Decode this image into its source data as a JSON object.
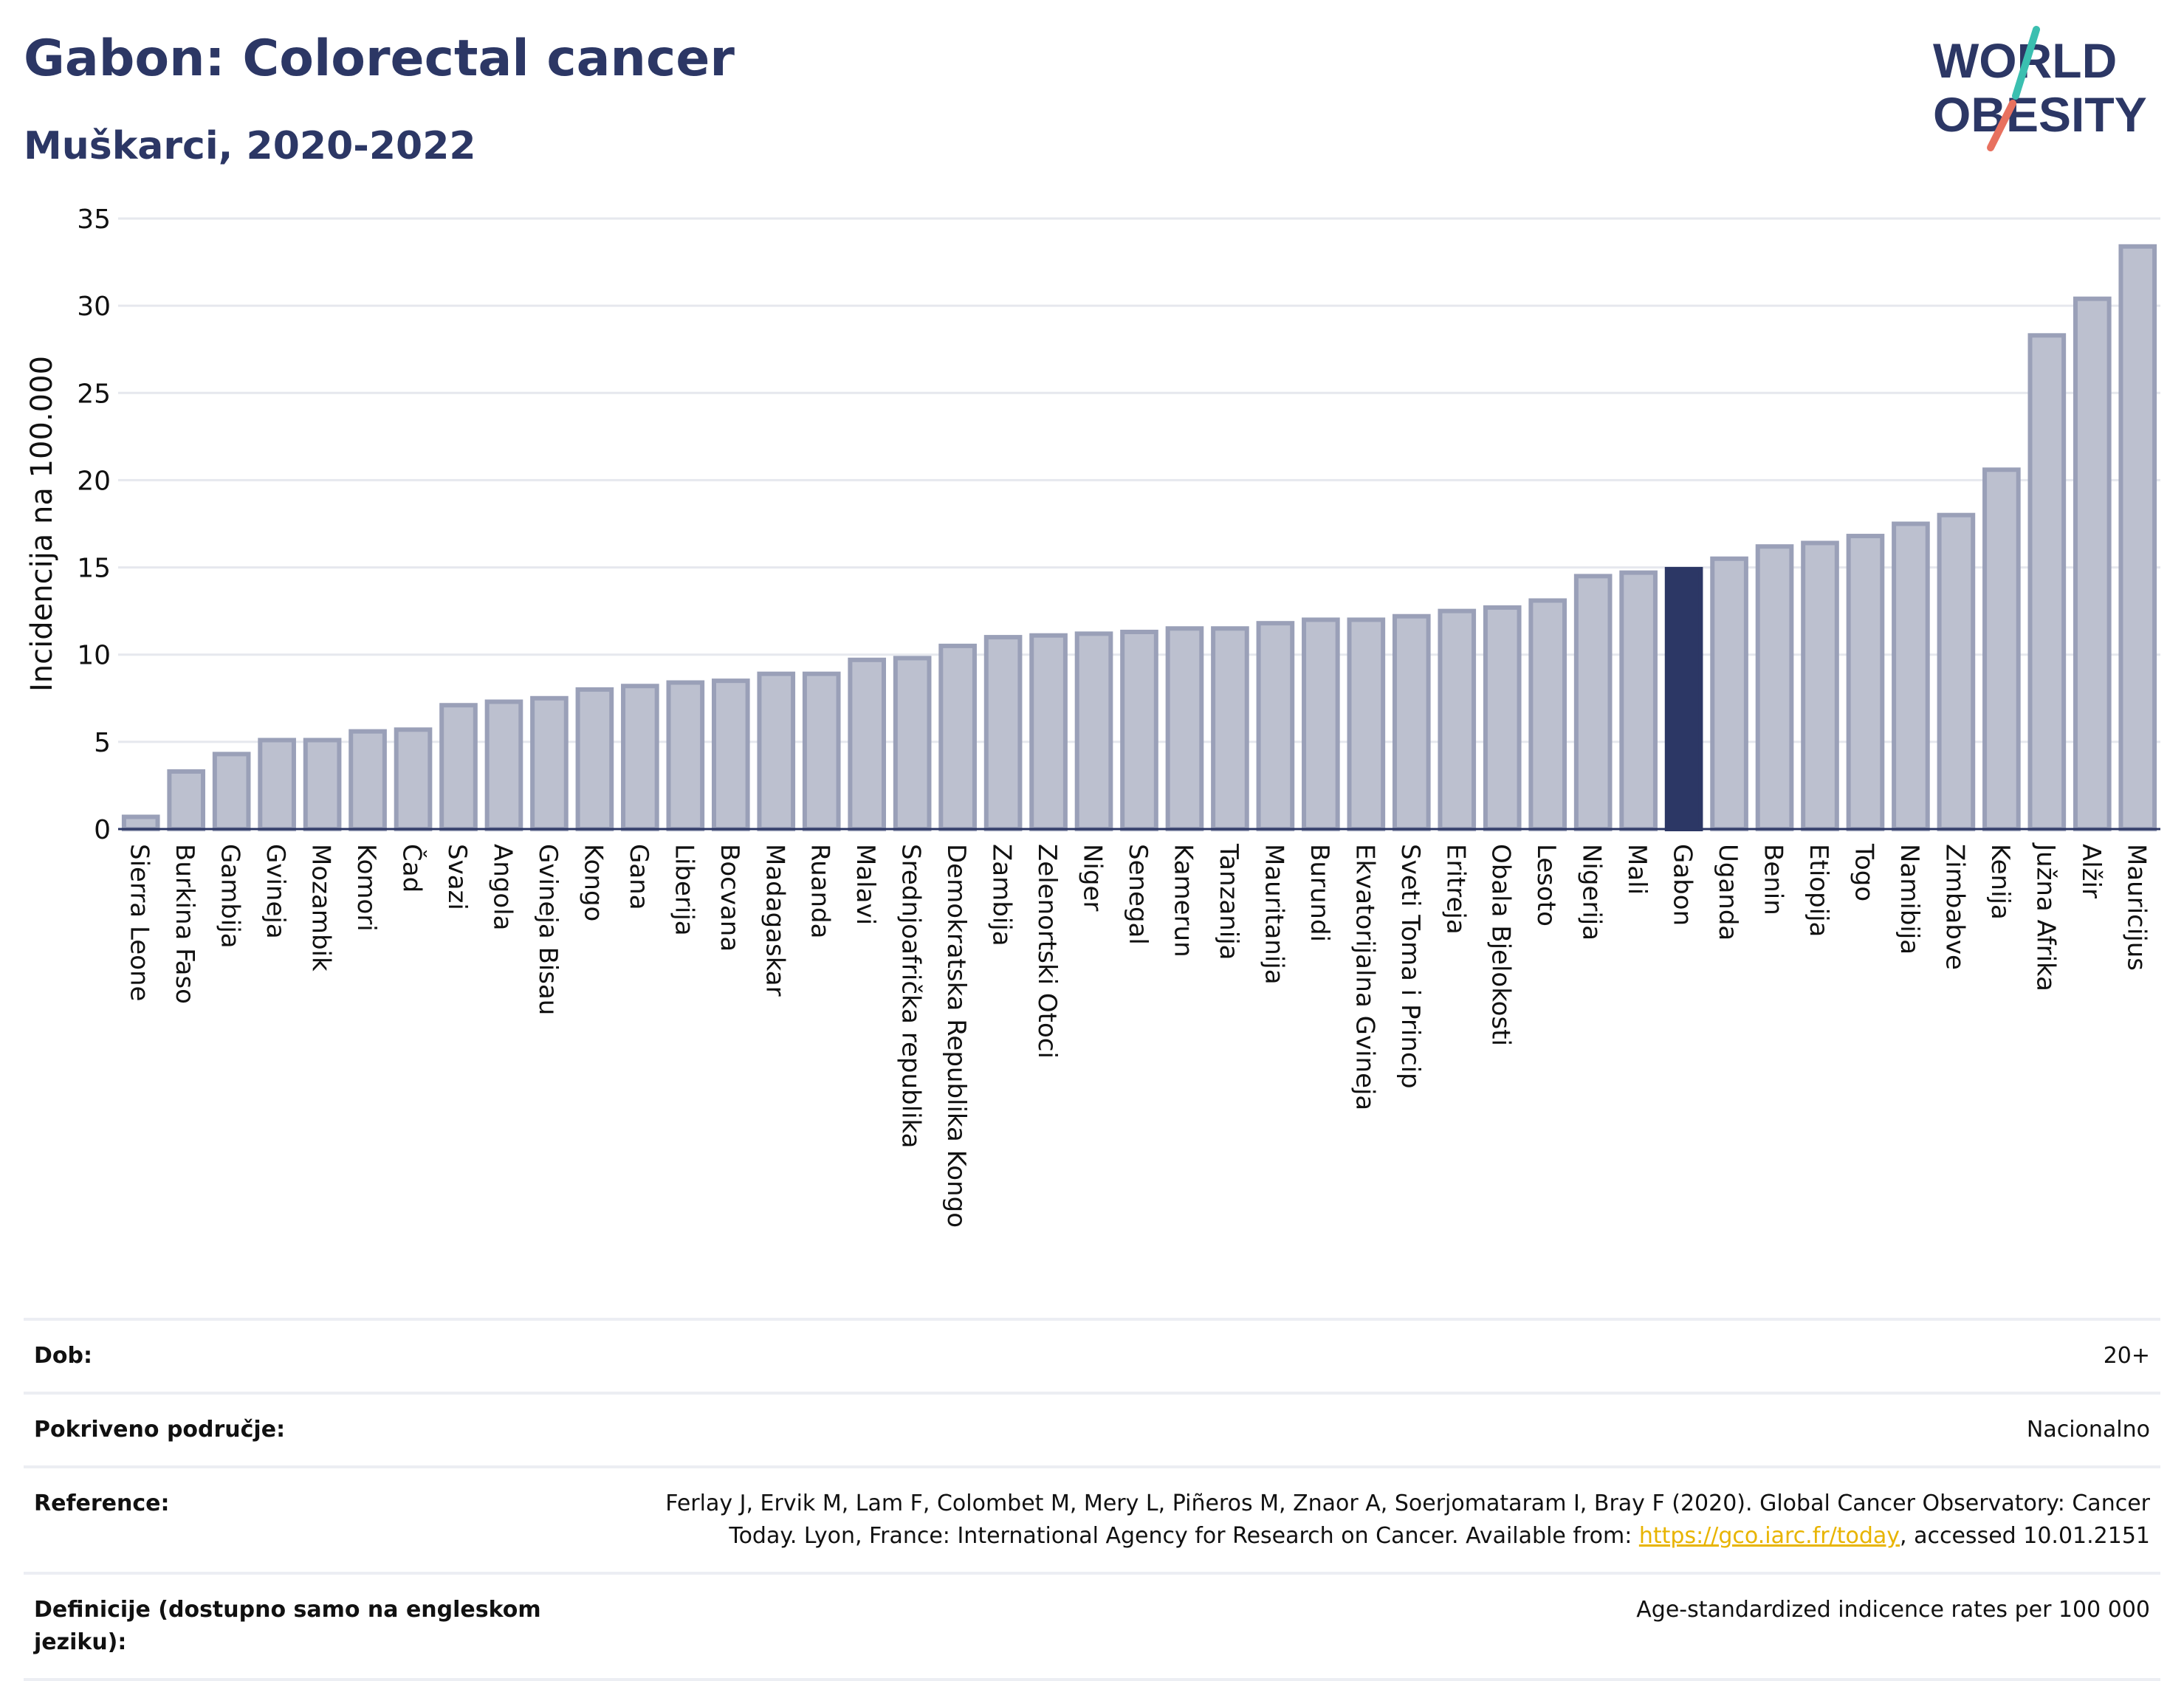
{
  "header": {
    "title": "Gabon: Colorectal cancer",
    "subtitle": "Muškarci, 2020-2022"
  },
  "logo": {
    "line1": "WORLD",
    "line2": "OBESITY"
  },
  "colors": {
    "highlight": "#2c3765",
    "bar": "#bcc0cf",
    "bar_stroke": "#9aa0b8",
    "title": "#2c3765"
  },
  "chart_data": {
    "type": "bar",
    "ylabel": "Incidencija na 100.000",
    "ylim": [
      0,
      35
    ],
    "yticks": [
      0,
      5,
      10,
      15,
      20,
      25,
      30,
      35
    ],
    "grid": true,
    "highlight": "Gabon",
    "categories": [
      "Sierra Leone",
      "Burkina Faso",
      "Gambija",
      "Gvineja",
      "Mozambik",
      "Komori",
      "Čad",
      "Svazi",
      "Angola",
      "Gvineja Bisau",
      "Kongo",
      "Gana",
      "Liberija",
      "Bocvana",
      "Madagaskar",
      "Ruanda",
      "Malavi",
      "Srednjoafrička republika",
      "Demokratska Republika Kongo",
      "Zambija",
      "Zelenortski Otoci",
      "Niger",
      "Senegal",
      "Kamerun",
      "Tanzanija",
      "Mauritanija",
      "Burundi",
      "Ekvatorijalna Gvineja",
      "Sveti Toma i Princip",
      "Eritreja",
      "Obala Bjelokosti",
      "Lesoto",
      "Nigerija",
      "Mali",
      "Gabon",
      "Uganda",
      "Benin",
      "Etiopija",
      "Togo",
      "Namibija",
      "Zimbabve",
      "Kenija",
      "Južna Afrika",
      "Alžir",
      "Mauricijus"
    ],
    "values": [
      0.7,
      3.3,
      4.3,
      5.1,
      5.1,
      5.6,
      5.7,
      7.1,
      7.3,
      7.5,
      8.0,
      8.2,
      8.4,
      8.5,
      8.9,
      8.9,
      9.7,
      9.8,
      10.5,
      11.0,
      11.1,
      11.2,
      11.3,
      11.5,
      11.5,
      11.8,
      12.0,
      12.0,
      12.2,
      12.5,
      12.7,
      13.1,
      14.5,
      14.7,
      14.9,
      15.5,
      16.2,
      16.4,
      16.8,
      17.5,
      18.0,
      20.6,
      28.3,
      30.4,
      33.4
    ]
  },
  "info": {
    "age_label": "Dob:",
    "age_value": "20+",
    "coverage_label": "Pokriveno područje:",
    "coverage_value": "Nacionalno",
    "reference_label": "Reference:",
    "reference_text_1": "Ferlay J, Ervik M, Lam F, Colombet M, Mery L, Piñeros M, Znaor A, Soerjomataram I, Bray F (2020). Global Cancer Observatory: Cancer Today. Lyon, France: International Agency for Research on Cancer. Available from: ",
    "reference_link": "https://gco.iarc.fr/today",
    "reference_text_2": ", accessed 10.01.2151",
    "definitions_label": "Definicije (dostupno samo na engleskom jeziku):",
    "definitions_value": "Age-standardized indicence rates per 100 000"
  }
}
